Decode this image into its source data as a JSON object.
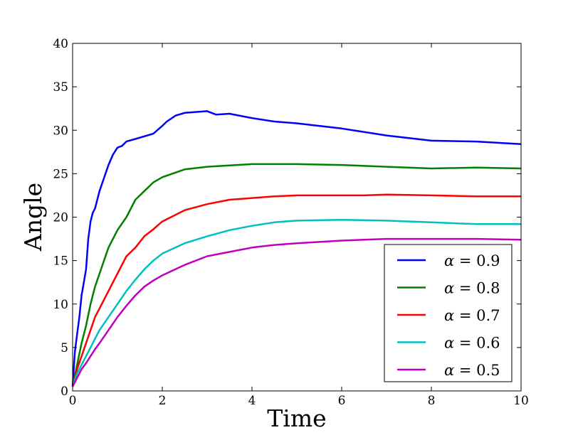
{
  "chart_data": {
    "type": "line",
    "title": "",
    "xlabel": "Time",
    "ylabel": "Angle",
    "xlim": [
      0,
      10
    ],
    "ylim": [
      0,
      40
    ],
    "xticks": [
      0,
      2,
      4,
      6,
      8,
      10
    ],
    "yticks": [
      0,
      5,
      10,
      15,
      20,
      25,
      30,
      35,
      40
    ],
    "xtick_labels": [
      "0",
      "2",
      "4",
      "6",
      "8",
      "10"
    ],
    "ytick_labels": [
      "0",
      "5",
      "10",
      "15",
      "20",
      "25",
      "30",
      "35",
      "40"
    ],
    "grid": false,
    "legend_position": "bottom-right",
    "series": [
      {
        "name": "α = 0.9",
        "symbol": "α",
        "value_text": "= 0.9",
        "color": "#0000ff",
        "x": [
          0,
          0.05,
          0.1,
          0.15,
          0.2,
          0.25,
          0.3,
          0.35,
          0.4,
          0.45,
          0.5,
          0.6,
          0.7,
          0.8,
          0.9,
          1.0,
          1.1,
          1.2,
          1.4,
          1.6,
          1.8,
          2.0,
          2.1,
          2.3,
          2.5,
          3.0,
          3.2,
          3.5,
          4.0,
          4.5,
          5.0,
          6.0,
          7.0,
          8.0,
          9.0,
          10.0
        ],
        "y": [
          0.5,
          4.5,
          6.5,
          8.5,
          11.0,
          12.5,
          14.0,
          17.5,
          19.5,
          20.5,
          21.0,
          23.0,
          24.5,
          26.0,
          27.2,
          28.0,
          28.2,
          28.7,
          29.0,
          29.3,
          29.6,
          30.5,
          31.0,
          31.7,
          32.0,
          32.2,
          31.8,
          31.9,
          31.4,
          31.0,
          30.8,
          30.2,
          29.4,
          28.8,
          28.7,
          28.4
        ]
      },
      {
        "name": "α = 0.8",
        "symbol": "α",
        "value_text": "= 0.8",
        "color": "#008000",
        "x": [
          0,
          0.1,
          0.2,
          0.3,
          0.4,
          0.5,
          0.6,
          0.8,
          1.0,
          1.2,
          1.4,
          1.6,
          1.8,
          2.0,
          2.5,
          3.0,
          4.0,
          5.0,
          6.0,
          7.0,
          8.0,
          9.0,
          10.0
        ],
        "y": [
          0.5,
          3.0,
          5.5,
          7.5,
          10.0,
          12.0,
          13.5,
          16.5,
          18.5,
          20.0,
          22.0,
          23.0,
          24.0,
          24.6,
          25.5,
          25.8,
          26.1,
          26.1,
          26.0,
          25.8,
          25.6,
          25.7,
          25.6
        ]
      },
      {
        "name": "α = 0.7",
        "symbol": "α",
        "value_text": "= 0.7",
        "color": "#ff0000",
        "x": [
          0,
          0.1,
          0.2,
          0.3,
          0.4,
          0.5,
          0.6,
          0.8,
          1.0,
          1.2,
          1.4,
          1.6,
          1.8,
          2.0,
          2.5,
          3.0,
          3.5,
          4.0,
          4.5,
          5.0,
          6.0,
          6.5,
          7.0,
          8.0,
          9.0,
          10.0
        ],
        "y": [
          0.5,
          2.5,
          4.0,
          5.5,
          7.0,
          8.5,
          9.5,
          11.5,
          13.5,
          15.5,
          16.5,
          17.8,
          18.6,
          19.5,
          20.8,
          21.5,
          22.0,
          22.2,
          22.4,
          22.5,
          22.5,
          22.5,
          22.6,
          22.5,
          22.4,
          22.4
        ]
      },
      {
        "name": "α = 0.6",
        "symbol": "α",
        "value_text": "= 0.6",
        "color": "#00bfbf",
        "x": [
          0,
          0.1,
          0.2,
          0.3,
          0.4,
          0.5,
          0.6,
          0.8,
          1.0,
          1.2,
          1.4,
          1.6,
          1.8,
          2.0,
          2.5,
          3.0,
          3.5,
          4.0,
          4.5,
          5.0,
          6.0,
          7.0,
          8.0,
          9.0,
          10.0
        ],
        "y": [
          0.5,
          2.0,
          3.0,
          4.0,
          5.0,
          6.0,
          7.0,
          8.5,
          10.0,
          11.5,
          12.8,
          14.0,
          15.0,
          15.8,
          17.0,
          17.8,
          18.5,
          19.0,
          19.4,
          19.6,
          19.7,
          19.6,
          19.4,
          19.2,
          19.2
        ]
      },
      {
        "name": "α = 0.5",
        "symbol": "α",
        "value_text": "= 0.5",
        "color": "#bf00bf",
        "x": [
          0,
          0.1,
          0.2,
          0.3,
          0.4,
          0.5,
          0.6,
          0.8,
          1.0,
          1.2,
          1.4,
          1.6,
          1.8,
          2.0,
          2.5,
          3.0,
          3.5,
          4.0,
          4.5,
          5.0,
          6.0,
          7.0,
          8.0,
          9.0,
          10.0
        ],
        "y": [
          0.5,
          1.5,
          2.5,
          3.2,
          4.0,
          4.8,
          5.5,
          7.0,
          8.5,
          9.8,
          11.0,
          12.0,
          12.7,
          13.3,
          14.5,
          15.5,
          16.0,
          16.5,
          16.8,
          17.0,
          17.3,
          17.5,
          17.5,
          17.5,
          17.4
        ]
      }
    ]
  }
}
